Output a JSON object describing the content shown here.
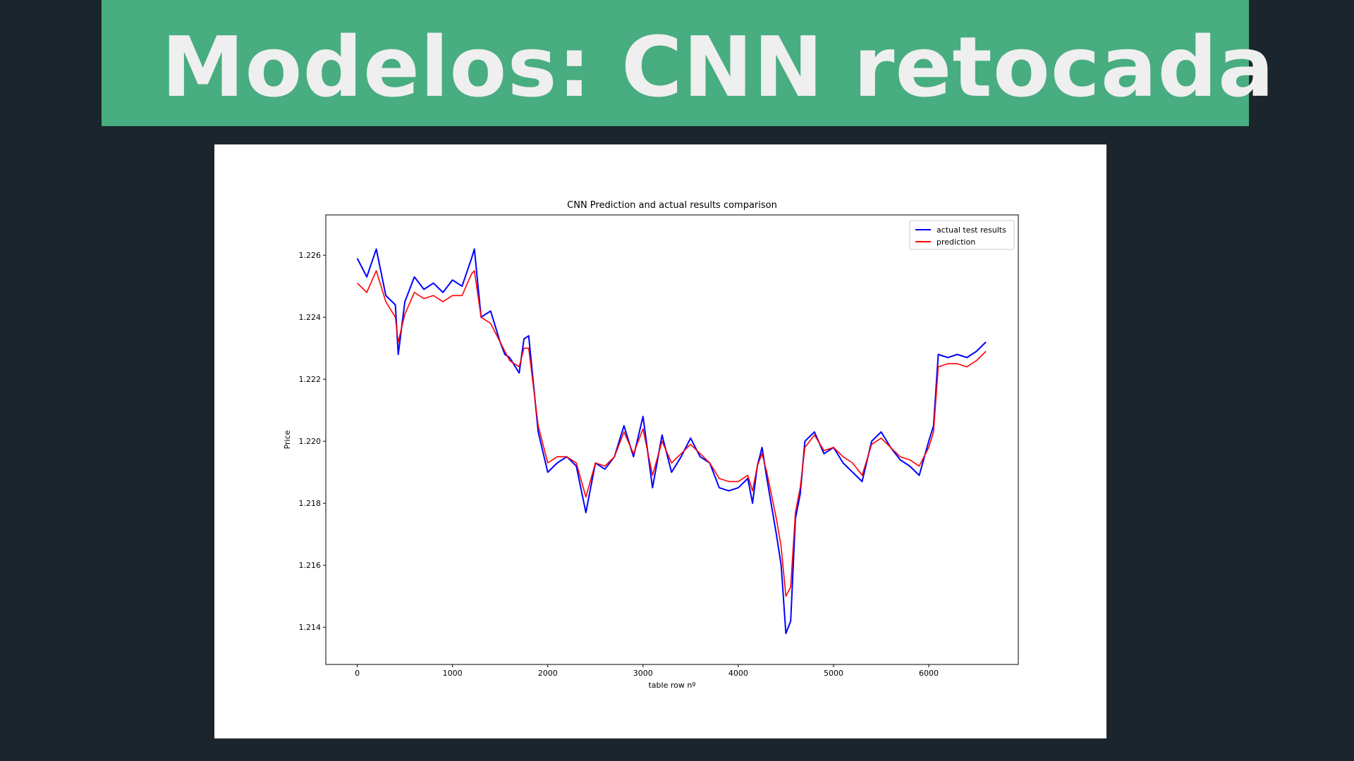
{
  "slide": {
    "title": "Modelos: CNN retocada",
    "colors": {
      "background": "#1b252d",
      "banner": "#48ad80",
      "title_text": "#efefef",
      "panel": "#ffffff"
    }
  },
  "chart_data": {
    "type": "line",
    "title": "CNN Prediction and actual results comparison",
    "xlabel": "table row nº",
    "ylabel": "Price",
    "xlim": [
      -330,
      6940
    ],
    "ylim": [
      1.2128,
      1.2273
    ],
    "xticks": [
      0,
      1000,
      2000,
      3000,
      4000,
      5000,
      6000
    ],
    "yticks": [
      1.214,
      1.216,
      1.218,
      1.22,
      1.222,
      1.224,
      1.226
    ],
    "ytick_labels": [
      "1.214",
      "1.216",
      "1.218",
      "1.220",
      "1.222",
      "1.224",
      "1.226"
    ],
    "grid": false,
    "legend_position": "top-right",
    "series": [
      {
        "name": "actual test results",
        "color": "#0000ff",
        "x": [
          0,
          100,
          200,
          300,
          400,
          430,
          500,
          600,
          700,
          800,
          900,
          1000,
          1100,
          1200,
          1230,
          1300,
          1400,
          1500,
          1550,
          1600,
          1700,
          1750,
          1800,
          1900,
          2000,
          2100,
          2200,
          2300,
          2400,
          2500,
          2600,
          2700,
          2800,
          2900,
          3000,
          3100,
          3200,
          3300,
          3400,
          3500,
          3600,
          3700,
          3800,
          3900,
          4000,
          4100,
          4150,
          4200,
          4250,
          4300,
          4400,
          4450,
          4500,
          4550,
          4600,
          4650,
          4700,
          4800,
          4900,
          5000,
          5100,
          5200,
          5300,
          5400,
          5500,
          5600,
          5700,
          5800,
          5900,
          6000,
          6050,
          6100,
          6200,
          6300,
          6400,
          6500,
          6600
        ],
        "y": [
          1.2259,
          1.2253,
          1.2262,
          1.2247,
          1.2244,
          1.2228,
          1.2245,
          1.2253,
          1.2249,
          1.2251,
          1.2248,
          1.2252,
          1.225,
          1.2259,
          1.2262,
          1.224,
          1.2242,
          1.2232,
          1.2228,
          1.2227,
          1.2222,
          1.2233,
          1.2234,
          1.2203,
          1.219,
          1.2193,
          1.2195,
          1.2192,
          1.2177,
          1.2193,
          1.2191,
          1.2195,
          1.2205,
          1.2195,
          1.2208,
          1.2185,
          1.2202,
          1.219,
          1.2195,
          1.2201,
          1.2195,
          1.2193,
          1.2185,
          1.2184,
          1.2185,
          1.2188,
          1.218,
          1.2192,
          1.2198,
          1.2188,
          1.217,
          1.216,
          1.2138,
          1.2142,
          1.2175,
          1.2183,
          1.22,
          1.2203,
          1.2196,
          1.2198,
          1.2193,
          1.219,
          1.2187,
          1.22,
          1.2203,
          1.2198,
          1.2194,
          1.2192,
          1.2189,
          1.22,
          1.2205,
          1.2228,
          1.2227,
          1.2228,
          1.2227,
          1.2229,
          1.2232
        ]
      },
      {
        "name": "prediction",
        "color": "#ff0000",
        "x": [
          0,
          100,
          200,
          300,
          400,
          430,
          500,
          600,
          700,
          800,
          900,
          1000,
          1100,
          1200,
          1230,
          1300,
          1400,
          1500,
          1550,
          1600,
          1700,
          1750,
          1800,
          1900,
          2000,
          2100,
          2200,
          2300,
          2400,
          2500,
          2600,
          2700,
          2800,
          2900,
          3000,
          3100,
          3200,
          3300,
          3400,
          3500,
          3600,
          3700,
          3800,
          3900,
          4000,
          4100,
          4150,
          4200,
          4250,
          4300,
          4400,
          4450,
          4500,
          4550,
          4600,
          4650,
          4700,
          4800,
          4900,
          5000,
          5100,
          5200,
          5300,
          5400,
          5500,
          5600,
          5700,
          5800,
          5900,
          6000,
          6050,
          6100,
          6200,
          6300,
          6400,
          6500,
          6600
        ],
        "y": [
          1.2251,
          1.2248,
          1.2255,
          1.2245,
          1.224,
          1.2232,
          1.2241,
          1.2248,
          1.2246,
          1.2247,
          1.2245,
          1.2247,
          1.2247,
          1.2254,
          1.2255,
          1.224,
          1.2238,
          1.2232,
          1.2229,
          1.2226,
          1.2224,
          1.223,
          1.223,
          1.2205,
          1.2193,
          1.2195,
          1.2195,
          1.2193,
          1.2182,
          1.2193,
          1.2192,
          1.2195,
          1.2203,
          1.2196,
          1.2204,
          1.2189,
          1.22,
          1.2193,
          1.2196,
          1.2199,
          1.2196,
          1.2193,
          1.2188,
          1.2187,
          1.2187,
          1.2189,
          1.2184,
          1.2192,
          1.2196,
          1.219,
          1.2175,
          1.2166,
          1.215,
          1.2153,
          1.2177,
          1.2185,
          1.2198,
          1.2202,
          1.2197,
          1.2198,
          1.2195,
          1.2193,
          1.2189,
          1.2199,
          1.2201,
          1.2198,
          1.2195,
          1.2194,
          1.2192,
          1.2198,
          1.2203,
          1.2224,
          1.2225,
          1.2225,
          1.2224,
          1.2226,
          1.2229
        ]
      }
    ]
  }
}
